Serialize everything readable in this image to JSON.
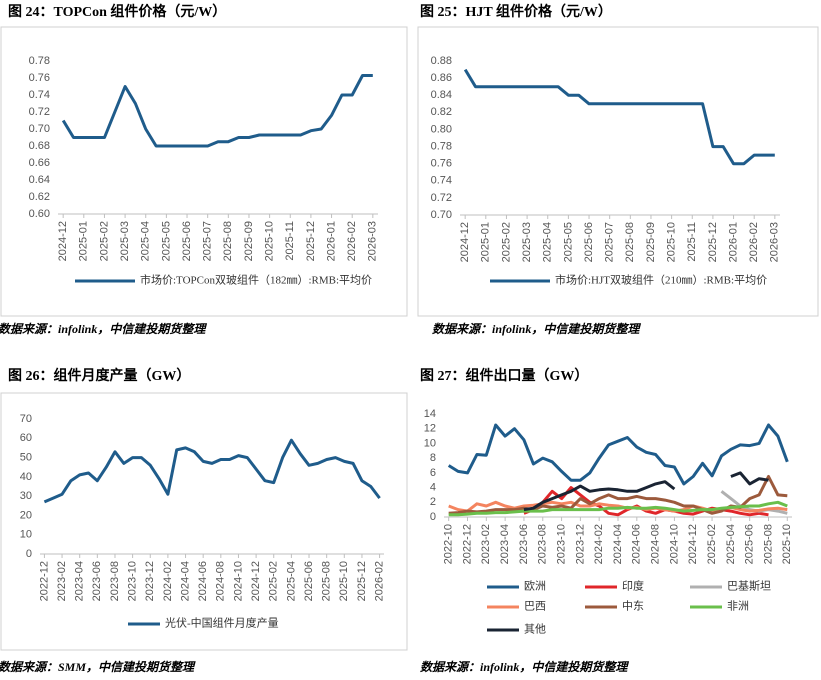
{
  "chart_data": [
    {
      "type": "line",
      "title": "图 24：TOPCon 组件价格（元/W）",
      "source": "数据来源：infolink，中信建投期货整理",
      "categories": [
        "2024-12",
        null,
        "2025-01",
        null,
        "2025-02",
        null,
        "2025-03",
        null,
        "2025-04",
        null,
        "2025-05",
        null,
        "2025-06",
        null,
        "2025-07",
        null,
        "2025-08",
        null,
        "2025-09",
        null,
        "2025-10",
        null,
        "2025-11",
        null,
        "2025-12",
        null,
        "2026-01",
        null,
        "2026-02",
        null,
        "2026-03"
      ],
      "series": [
        {
          "name": "市场价:TOPCon双玻组件（182㎜）:RMB:平均价",
          "color": "#1f5c8b",
          "values": [
            0.71,
            0.69,
            0.69,
            0.69,
            0.69,
            0.72,
            0.75,
            0.73,
            0.7,
            0.68,
            0.68,
            0.68,
            0.68,
            0.68,
            0.68,
            0.685,
            0.685,
            0.69,
            0.69,
            0.693,
            0.693,
            0.693,
            0.693,
            0.693,
            0.698,
            0.7,
            0.716,
            0.74,
            0.74,
            0.763,
            0.763
          ]
        }
      ],
      "ylim": [
        0.6,
        0.78
      ],
      "yticks": [
        {
          "value": 0.6,
          "label": "0.60"
        },
        0.62,
        0.64,
        0.66,
        0.68,
        {
          "value": 0.7,
          "label": "0.70"
        },
        0.72,
        0.74,
        0.76,
        0.78
      ],
      "grid": false,
      "legend": "bottom"
    },
    {
      "type": "line",
      "title": "图 25：HJT 组件价格（元/W）",
      "source": "数据来源：infolink，中信建投期货整理",
      "categories": [
        "2024-12",
        null,
        "2025-01",
        null,
        "2025-02",
        null,
        "2025-03",
        null,
        "2025-04",
        null,
        "2025-05",
        null,
        "2025-06",
        null,
        "2025-07",
        null,
        "2025-08",
        null,
        "2025-09",
        null,
        "2025-10",
        null,
        "2025-11",
        null,
        "2025-12",
        null,
        "2026-01",
        null,
        "2026-02",
        null,
        "2026-03"
      ],
      "series": [
        {
          "name": "市场价:HJT双玻组件（210㎜）:RMB:平均价",
          "color": "#1f5c8b",
          "values": [
            0.87,
            0.85,
            0.85,
            0.85,
            0.85,
            0.85,
            0.85,
            0.85,
            0.85,
            0.85,
            0.84,
            0.84,
            0.83,
            0.83,
            0.83,
            0.83,
            0.83,
            0.83,
            0.83,
            0.83,
            0.83,
            0.83,
            0.83,
            0.83,
            0.78,
            0.78,
            0.76,
            0.76,
            0.77,
            0.77,
            0.77
          ]
        }
      ],
      "ylim": [
        0.7,
        0.88
      ],
      "yticks": [
        {
          "value": 0.7,
          "label": "0.70"
        },
        0.72,
        0.74,
        0.76,
        0.78,
        {
          "value": 0.8,
          "label": "0.80"
        },
        0.82,
        0.84,
        0.86,
        0.88
      ],
      "grid": false,
      "legend": "bottom"
    },
    {
      "type": "line",
      "title": "图 26：组件月度产量（GW）",
      "source": "数据来源：SMM，中信建投期货整理",
      "categories": [
        "2022-12",
        null,
        "2023-02",
        null,
        "2023-04",
        null,
        "2023-06",
        null,
        "2023-08",
        null,
        "2023-10",
        null,
        "2023-12",
        null,
        "2024-02",
        null,
        "2024-04",
        null,
        "2024-06",
        null,
        "2024-08",
        null,
        "2024-10",
        null,
        "2024-12",
        null,
        "2025-02",
        null,
        "2025-04",
        null,
        "2025-06",
        null,
        "2025-08",
        null,
        "2025-10",
        null,
        "2025-12",
        null,
        "2026-02"
      ],
      "series": [
        {
          "name": "光伏-中国组件月度产量",
          "color": "#1f5c8b",
          "values": [
            27,
            29,
            31,
            38,
            41,
            42,
            38,
            45,
            53,
            47,
            50,
            50,
            46,
            39,
            31,
            54,
            55,
            53,
            48,
            47,
            49,
            49,
            51,
            50,
            44,
            38,
            37,
            50,
            59,
            52,
            46,
            47,
            49,
            50,
            48,
            47,
            38,
            35,
            29
          ]
        }
      ],
      "ylim": [
        0,
        70
      ],
      "yticks": [
        0,
        10,
        20,
        30,
        40,
        50,
        60,
        70
      ],
      "grid": false,
      "legend": "bottom"
    },
    {
      "type": "line",
      "title": "图 27：组件出口量（GW）",
      "source": "数据来源：infolink，中信建投期货整理",
      "categories": [
        "2022-10",
        null,
        "2022-12",
        null,
        "2023-02",
        null,
        "2023-04",
        null,
        "2023-06",
        null,
        "2023-08",
        null,
        "2023-10",
        null,
        "2023-12",
        null,
        "2024-02",
        null,
        "2024-04",
        null,
        "2024-06",
        null,
        "2024-08",
        null,
        "2024-10",
        null,
        "2024-12",
        null,
        "2025-02",
        null,
        "2025-04",
        null,
        "2025-06",
        null,
        "2025-08",
        null,
        "2025-10"
      ],
      "series": [
        {
          "name": "欧洲",
          "color": "#1f5c8b",
          "values": [
            7,
            6.2,
            6,
            8.5,
            8.4,
            12.5,
            11,
            12,
            10.5,
            7.2,
            8,
            7.5,
            6.2,
            5,
            5,
            6,
            8,
            9.8,
            10.3,
            10.8,
            9.5,
            8.8,
            8.5,
            7,
            6.8,
            4.5,
            5.5,
            7.3,
            5.6,
            8.3,
            9.2,
            9.8,
            9.7,
            10,
            12.5,
            11,
            7.5
          ]
        },
        {
          "name": "印度",
          "color": "#e0262a",
          "values": [
            null,
            null,
            null,
            null,
            null,
            null,
            null,
            null,
            0.5,
            1,
            2,
            3.5,
            2.5,
            4,
            3,
            2,
            1.5,
            0.5,
            0.3,
            1,
            1.5,
            0.8,
            0.5,
            1,
            0.8,
            0.5,
            0.4,
            0.8,
            1.2,
            1,
            0.8,
            0.5,
            0.3,
            0.5,
            0.3,
            null,
            null
          ]
        },
        {
          "name": "巴基斯坦",
          "color": "#b0b0b0",
          "values": [
            null,
            null,
            null,
            null,
            null,
            null,
            null,
            null,
            null,
            null,
            null,
            null,
            null,
            null,
            null,
            null,
            null,
            null,
            null,
            null,
            null,
            null,
            null,
            null,
            null,
            null,
            null,
            null,
            null,
            3.5,
            2.5,
            1.5,
            1,
            0.8,
            1,
            0.8,
            0.5
          ]
        },
        {
          "name": "巴西",
          "color": "#f4845f",
          "values": [
            1.5,
            1,
            0.8,
            1.8,
            1.5,
            2,
            1.5,
            1.2,
            1.5,
            1.6,
            1.8,
            2,
            1.8,
            2,
            1.5,
            1.5,
            1.8,
            1.6,
            1.5,
            1.2,
            1.3,
            1,
            1.2,
            1,
            0.8,
            1,
            1.5,
            1.2,
            0.8,
            1,
            1.3,
            1,
            0.8,
            0.9,
            1.1,
            1.2,
            1
          ]
        },
        {
          "name": "中东",
          "color": "#9c5a3c",
          "values": [
            0.5,
            0.6,
            0.8,
            0.7,
            0.8,
            1,
            1,
            1,
            1.2,
            1,
            1.5,
            1.3,
            1.5,
            1.2,
            2.5,
            1.8,
            2.5,
            3,
            2.5,
            2.5,
            2.8,
            2.5,
            2.5,
            2.3,
            2,
            1.5,
            1.5,
            1,
            0.5,
            0.8,
            1.5,
            1.3,
            2.5,
            3,
            5.5,
            3,
            2.9
          ]
        },
        {
          "name": "非洲",
          "color": "#6abf4b",
          "values": [
            0.3,
            0.3,
            0.4,
            0.5,
            0.5,
            0.6,
            0.6,
            0.7,
            0.8,
            0.8,
            0.8,
            1,
            1,
            1,
            1,
            1,
            1,
            1.2,
            1.2,
            1.3,
            1.2,
            1.2,
            1.3,
            1.2,
            1,
            0.8,
            0.9,
            1,
            1,
            1.2,
            1.3,
            1.4,
            1.5,
            1.5,
            1.8,
            2,
            1.5
          ]
        },
        {
          "name": "其他",
          "color": "#1a2433",
          "values": [
            null,
            null,
            null,
            null,
            null,
            null,
            null,
            null,
            1,
            1.2,
            2,
            2.5,
            3,
            3.5,
            4.2,
            3.5,
            3.7,
            3.8,
            3.7,
            3.5,
            3.5,
            4,
            4.5,
            4.8,
            3.8,
            null,
            null,
            null,
            null,
            null,
            5.5,
            6,
            4.5,
            5.2,
            5,
            null,
            null
          ]
        }
      ],
      "ylim": [
        0,
        14
      ],
      "yticks": [
        0,
        2,
        4,
        6,
        8,
        10,
        12,
        14
      ],
      "grid": false,
      "legend": "bottom"
    }
  ]
}
